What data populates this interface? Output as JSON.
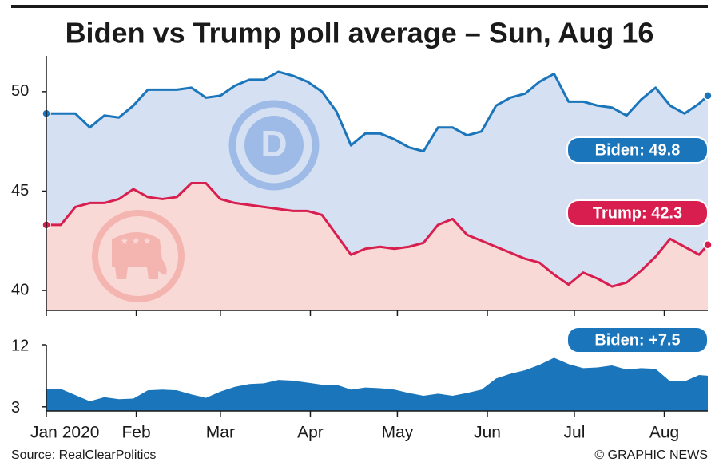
{
  "chart_data": [
    {
      "type": "line",
      "title": "Biden vs Trump poll average – Sun, Aug 16",
      "x": [
        0,
        5,
        10,
        15,
        20,
        25,
        30,
        35,
        40,
        45,
        50,
        55,
        60,
        65,
        70,
        75,
        80,
        85,
        90,
        95,
        100,
        105,
        110,
        115,
        120,
        125,
        130,
        135,
        140,
        145,
        150,
        155,
        160,
        165,
        170,
        175,
        180,
        185,
        190,
        195,
        200,
        205,
        210,
        215,
        220,
        225,
        228
      ],
      "series": [
        {
          "name": "Biden",
          "color": "#1b75bb",
          "fill": "#d5e1f3",
          "end_label": "Biden: 49.8",
          "values": [
            48.9,
            48.9,
            48.9,
            48.2,
            48.8,
            48.7,
            49.3,
            50.1,
            50.1,
            50.1,
            50.2,
            49.7,
            49.8,
            50.3,
            50.6,
            50.6,
            51.0,
            50.8,
            50.5,
            50.0,
            49.0,
            47.3,
            47.9,
            47.9,
            47.6,
            47.2,
            47.0,
            48.2,
            48.2,
            47.8,
            48.0,
            49.3,
            49.7,
            49.9,
            50.5,
            50.9,
            49.5,
            49.5,
            49.3,
            49.2,
            48.8,
            49.6,
            50.2,
            49.3,
            48.9,
            49.4,
            49.8
          ]
        },
        {
          "name": "Trump",
          "color": "#d81e4f",
          "fill": "#f9d9d6",
          "end_label": "Trump: 42.3",
          "values": [
            43.3,
            43.3,
            44.2,
            44.4,
            44.4,
            44.6,
            45.1,
            44.7,
            44.6,
            44.7,
            45.4,
            45.4,
            44.6,
            44.4,
            44.3,
            44.2,
            44.1,
            44.0,
            44.0,
            43.8,
            42.8,
            41.8,
            42.1,
            42.2,
            42.1,
            42.2,
            42.4,
            43.3,
            43.6,
            42.8,
            42.5,
            42.2,
            41.9,
            41.6,
            41.4,
            40.8,
            40.3,
            40.9,
            40.6,
            40.2,
            40.4,
            41.0,
            41.7,
            42.6,
            42.2,
            41.8,
            42.3
          ]
        }
      ],
      "xlim": [
        0,
        228
      ],
      "ylim": [
        39,
        51.8
      ],
      "yticks": [
        40,
        45,
        50
      ]
    },
    {
      "type": "area",
      "x": [
        0,
        5,
        10,
        15,
        20,
        25,
        30,
        35,
        40,
        45,
        50,
        55,
        60,
        65,
        70,
        75,
        80,
        85,
        90,
        95,
        100,
        105,
        110,
        115,
        120,
        125,
        130,
        135,
        140,
        145,
        150,
        155,
        160,
        165,
        170,
        175,
        180,
        185,
        190,
        195,
        200,
        205,
        210,
        215,
        220,
        225,
        228
      ],
      "series": [
        {
          "name": "Biden lead",
          "color": "#1b75bb",
          "end_label": "Biden: +7.5",
          "values": [
            5.6,
            5.6,
            4.7,
            3.8,
            4.4,
            4.1,
            4.2,
            5.4,
            5.5,
            5.4,
            4.8,
            4.3,
            5.2,
            5.9,
            6.3,
            6.4,
            6.9,
            6.8,
            6.5,
            6.2,
            6.2,
            5.5,
            5.8,
            5.7,
            5.5,
            5.0,
            4.6,
            4.9,
            4.6,
            5.0,
            5.5,
            7.1,
            7.8,
            8.3,
            9.1,
            10.1,
            9.2,
            8.6,
            8.7,
            9.0,
            8.4,
            8.6,
            8.5,
            6.7,
            6.7,
            7.6,
            7.5
          ]
        }
      ],
      "xlim": [
        0,
        228
      ],
      "ylim": [
        2.4,
        12
      ],
      "yticks": [
        3,
        12
      ],
      "xticks": [
        {
          "value": 0,
          "label": "Jan 2020"
        },
        {
          "value": 31,
          "label": "Feb"
        },
        {
          "value": 60,
          "label": "Mar"
        },
        {
          "value": 91,
          "label": "Apr"
        },
        {
          "value": 121,
          "label": "May"
        },
        {
          "value": 152,
          "label": "Jun"
        },
        {
          "value": 182,
          "label": "Jul"
        },
        {
          "value": 213,
          "label": "Aug"
        }
      ]
    }
  ],
  "source": "Source: RealClearPolitics",
  "credit": "© GRAPHIC NEWS"
}
